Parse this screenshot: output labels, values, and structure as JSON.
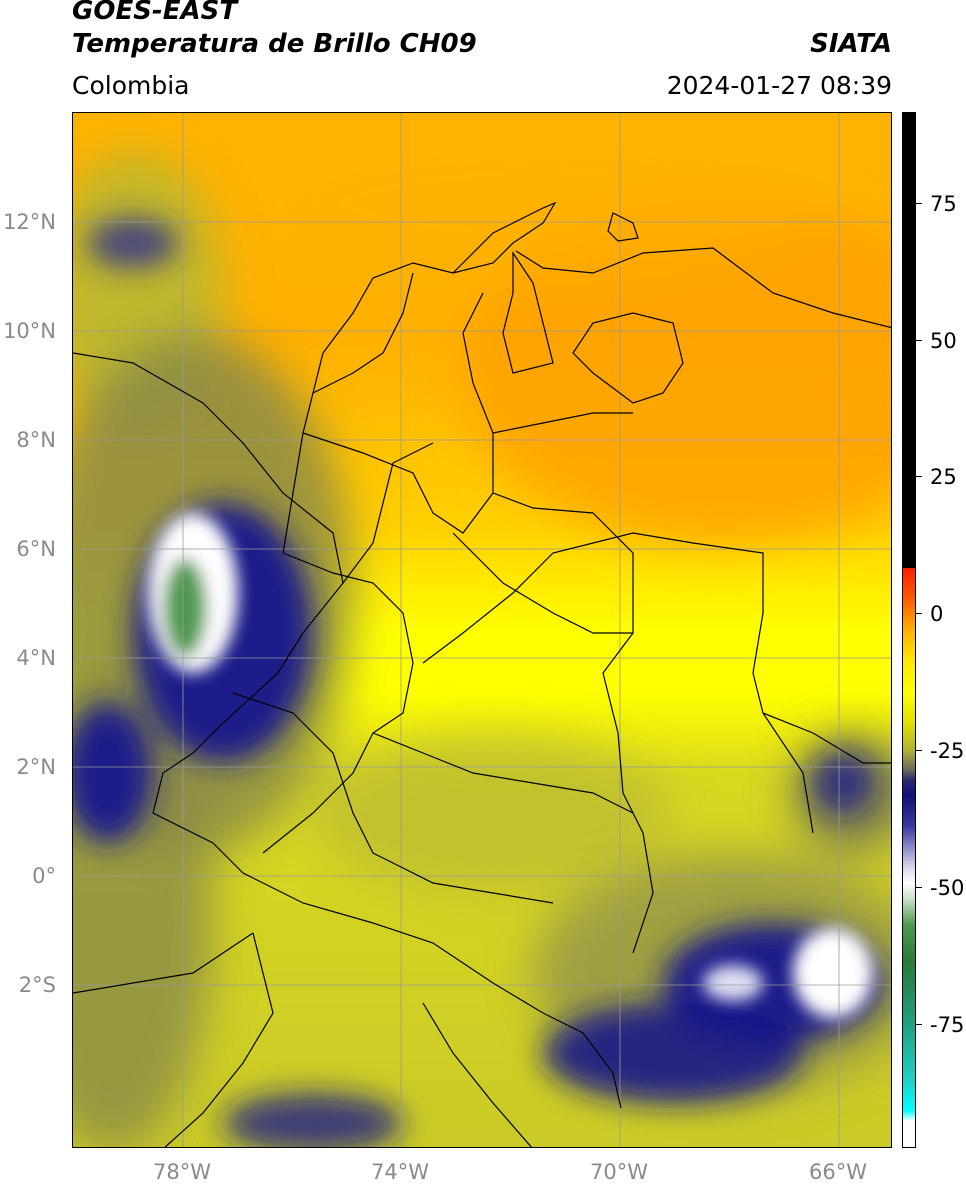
{
  "header": {
    "title_line1": "GOES-EAST",
    "title_line2": "Temperatura de Brillo CH09",
    "subtitle": "Colombia",
    "agency": "SIATA",
    "datetime": "2024-01-27 08:39"
  },
  "axes": {
    "latitude_labels": [
      "12°N",
      "10°N",
      "8°N",
      "6°N",
      "4°N",
      "2°N",
      "0°",
      "2°S"
    ],
    "longitude_labels": [
      "78°W",
      "74°W",
      "70°W",
      "66°W"
    ],
    "lat_range": [
      -5,
      14
    ],
    "lon_range": [
      -80,
      -65
    ]
  },
  "colorbar": {
    "tick_labels": [
      "75",
      "50",
      "25",
      "0",
      "-25",
      "-50",
      "-75"
    ],
    "range": [
      -100,
      90
    ],
    "colors": [
      "#000000",
      "#ff1a00",
      "#ffb000",
      "#ffff00",
      "#b5b530",
      "#10107a",
      "#ffffff",
      "#2a7a3a",
      "#00ffff"
    ]
  },
  "map": {
    "dominant_colors": {
      "caribbean_warm": "#ffa500",
      "land_mid": "#ffff00",
      "amazon": "#cccc20",
      "cold_cloud": "#1a1a8a",
      "coldest": "#ffffff"
    }
  }
}
